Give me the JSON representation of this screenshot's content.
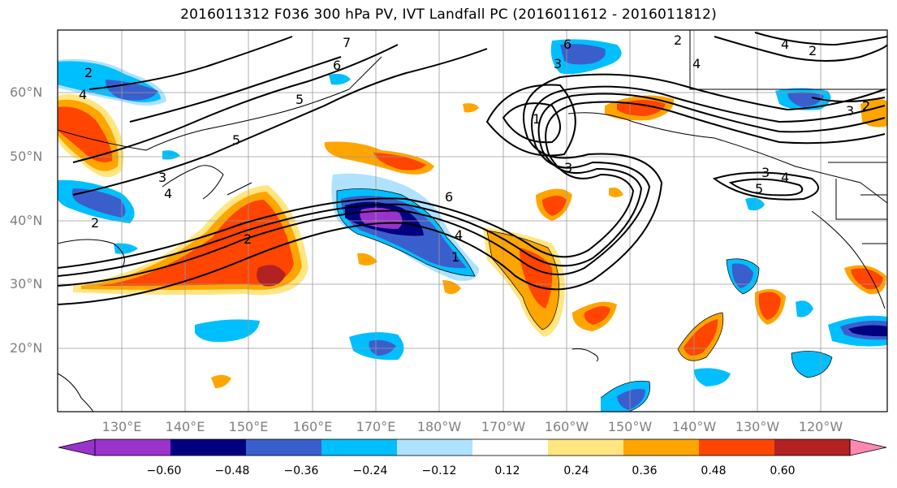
{
  "title": "2016011312 F036 300 hPa PV, IVT Landfall PC (2016011612 - 2016011812)",
  "lat_labels": [
    "60°N",
    "50°N",
    "40°N",
    "30°N",
    "20°N"
  ],
  "lon_labels": [
    "130°E",
    "140°E",
    "150°E",
    "160°E",
    "170°E",
    "180°W",
    "170°W",
    "160°W",
    "150°W",
    "140°W",
    "130°W",
    "120°W"
  ],
  "colorbar": {
    "ticks": [
      "−0.60",
      "−0.48",
      "−0.36",
      "−0.24",
      "−0.12",
      "0.12",
      "0.24",
      "0.36",
      "0.48",
      "0.60"
    ],
    "colors": [
      "#9933cc",
      "#000080",
      "#3a5fcd",
      "#00bfff",
      "#b0e2ff",
      "#ffffff",
      "#ffe680",
      "#ffa500",
      "#ff4500",
      "#b22222",
      "#ff88b0"
    ]
  },
  "contour_labels": [
    "2",
    "4",
    "1",
    "3",
    "5",
    "6",
    "7"
  ]
}
